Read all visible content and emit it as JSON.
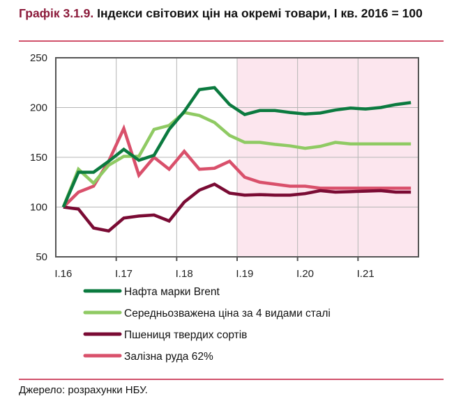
{
  "title": {
    "number": "Графік 3.1.9.",
    "text": " Індекси світових цін на окремі товари, І кв. 2016 = 100"
  },
  "source": "Джерело: розрахунки НБУ.",
  "chart_data": {
    "type": "line",
    "title": "Графік 3.1.9. Індекси світових цін на окремі товари, І кв. 2016 = 100",
    "x": [
      "I.16",
      "II.16",
      "III.16",
      "IV.16",
      "I.17",
      "II.17",
      "III.17",
      "IV.17",
      "I.18",
      "II.18",
      "III.18",
      "IV.18",
      "I.19",
      "II.19",
      "III.19",
      "IV.19",
      "I.20",
      "II.20",
      "III.20",
      "IV.20",
      "I.21",
      "II.21",
      "III.21",
      "IV.21"
    ],
    "x_tick_labels": [
      "I.16",
      "I.17",
      "I.18",
      "I.19",
      "I.20",
      "I.21"
    ],
    "y_ticks": [
      50,
      100,
      150,
      200,
      250
    ],
    "ylim": [
      50,
      250
    ],
    "grid": true,
    "legend_position": "bottom",
    "forecast_shading_from": "I.19",
    "shading_color": "#fce6ee",
    "series": [
      {
        "name": "Нафта марки Brent",
        "color": "#0b7a3f",
        "values": [
          100,
          135,
          135,
          146,
          158,
          147,
          152,
          178,
          196,
          218,
          220,
          203,
          193,
          197,
          197,
          195,
          193.5,
          194.5,
          197.5,
          199.5,
          198.5,
          200,
          203,
          205
        ]
      },
      {
        "name": "Середньозважена ціна за 4 видами сталі",
        "color": "#8fca63",
        "values": [
          100,
          138,
          124,
          142,
          151,
          151,
          178,
          182,
          195,
          192,
          185,
          172,
          165,
          165,
          163,
          161.5,
          159,
          161,
          165,
          163.5,
          163.5,
          163.5,
          163.5,
          163.5
        ]
      },
      {
        "name": "Пшениця твердих сортів",
        "color": "#7a0b34",
        "values": [
          100,
          98,
          79,
          76,
          89,
          91,
          92,
          86,
          105,
          117,
          123,
          114,
          112,
          112.5,
          112,
          112,
          113.5,
          116.5,
          115,
          115.5,
          116,
          116.5,
          115,
          115
        ]
      },
      {
        "name": "Залізна руда 62%",
        "color": "#d9506b",
        "values": [
          100,
          115,
          121,
          146,
          179,
          132,
          150,
          138,
          156,
          138,
          139,
          146,
          130,
          125,
          123,
          121,
          121,
          119,
          119,
          119,
          119,
          119,
          119,
          119
        ]
      }
    ]
  }
}
